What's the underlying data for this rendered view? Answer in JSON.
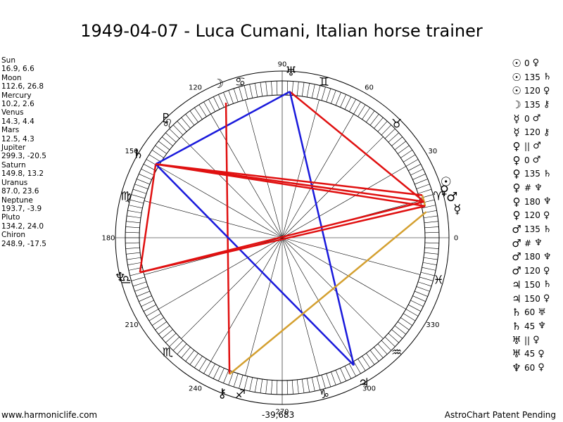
{
  "title": "1949-04-07 - Luca Cumani, Italian horse trainer",
  "planets": [
    {
      "name": "Sun",
      "glyph": "☉",
      "lon": 16.9,
      "lat": 6.6,
      "coords": "16.9, 6.6"
    },
    {
      "name": "Moon",
      "glyph": "☽",
      "lon": 112.6,
      "lat": 26.8,
      "coords": "112.6, 26.8"
    },
    {
      "name": "Mercury",
      "glyph": "☿",
      "lon": 10.2,
      "lat": 2.6,
      "coords": "10.2, 2.6"
    },
    {
      "name": "Venus",
      "glyph": "♀",
      "lon": 14.3,
      "lat": 4.4,
      "coords": "14.3, 4.4"
    },
    {
      "name": "Mars",
      "glyph": "♂",
      "lon": 12.5,
      "lat": 4.3,
      "coords": "12.5, 4.3"
    },
    {
      "name": "Jupiter",
      "glyph": "♃",
      "lon": 299.3,
      "lat": -20.5,
      "coords": "299.3, -20.5"
    },
    {
      "name": "Saturn",
      "glyph": "♄",
      "lon": 149.8,
      "lat": 13.2,
      "coords": "149.8, 13.2"
    },
    {
      "name": "Uranus",
      "glyph": "♅",
      "lon": 87.0,
      "lat": 23.6,
      "coords": "87.0, 23.6"
    },
    {
      "name": "Neptune",
      "glyph": "♆",
      "lon": 193.7,
      "lat": -3.9,
      "coords": "193.7, -3.9"
    },
    {
      "name": "Pluto",
      "glyph": "♇",
      "lon": 134.2,
      "lat": 24.0,
      "coords": "134.2, 24.0"
    },
    {
      "name": "Chiron",
      "glyph": "⚷",
      "lon": 248.9,
      "lat": -17.5,
      "coords": "248.9, -17.5"
    }
  ],
  "aspects": [
    {
      "p1": "☉",
      "angle": "0",
      "p2": "♀"
    },
    {
      "p1": "☉",
      "angle": "135",
      "p2": "♄"
    },
    {
      "p1": "☉",
      "angle": "120",
      "p2": "♀"
    },
    {
      "p1": "☽",
      "angle": "135",
      "p2": "⚷"
    },
    {
      "p1": "☿",
      "angle": "0",
      "p2": "♂"
    },
    {
      "p1": "☿",
      "angle": "120",
      "p2": "⚷"
    },
    {
      "p1": "♀",
      "angle": "||",
      "p2": "♂"
    },
    {
      "p1": "♀",
      "angle": "0",
      "p2": "♂"
    },
    {
      "p1": "♀",
      "angle": "135",
      "p2": "♄"
    },
    {
      "p1": "♀",
      "angle": "#",
      "p2": "♆"
    },
    {
      "p1": "♀",
      "angle": "180",
      "p2": "♆"
    },
    {
      "p1": "♀",
      "angle": "120",
      "p2": "♀"
    },
    {
      "p1": "♂",
      "angle": "135",
      "p2": "♄"
    },
    {
      "p1": "♂",
      "angle": "#",
      "p2": "♆"
    },
    {
      "p1": "♂",
      "angle": "180",
      "p2": "♆"
    },
    {
      "p1": "♂",
      "angle": "120",
      "p2": "♀"
    },
    {
      "p1": "♃",
      "angle": "150",
      "p2": "♄"
    },
    {
      "p1": "♃",
      "angle": "150",
      "p2": "♀"
    },
    {
      "p1": "♄",
      "angle": "60",
      "p2": "♅"
    },
    {
      "p1": "♄",
      "angle": "45",
      "p2": "♆"
    },
    {
      "p1": "♅",
      "angle": "||",
      "p2": "♀"
    },
    {
      "p1": "♅",
      "angle": "45",
      "p2": "♀"
    },
    {
      "p1": "♆",
      "angle": "60",
      "p2": "♀"
    }
  ],
  "degree_labels": [
    "0",
    "30",
    "60",
    "90",
    "120",
    "150",
    "180",
    "210",
    "240",
    "270",
    "300",
    "330"
  ],
  "zodiac": [
    "♈",
    "♉",
    "♊",
    "♋",
    "♌",
    "♍",
    "♎",
    "♏",
    "♐",
    "♑",
    "♒",
    "♓"
  ],
  "chart_lines": [
    {
      "from": "Uranus",
      "to": "Venus",
      "color": "#e01010"
    },
    {
      "from": "Uranus",
      "to": "Saturn",
      "color": "#1a1adc"
    },
    {
      "from": "Uranus",
      "to": "Jupiter",
      "color": "#1a1adc"
    },
    {
      "from": "Moon",
      "to": "Chiron",
      "color": "#e01010"
    },
    {
      "from": "Saturn",
      "to": "Neptune",
      "color": "#e01010"
    },
    {
      "from": "Saturn",
      "to": "Jupiter",
      "color": "#1a1adc"
    },
    {
      "from": "Venus",
      "to": "Mars",
      "color": "#d4a030"
    },
    {
      "from": "Venus",
      "to": "Sun",
      "color": "#d4a030"
    },
    {
      "from": "Chiron",
      "to": "Mercury",
      "color": "#d4a030"
    },
    {
      "from": "Saturn",
      "to": "Sun",
      "color": "#e01010"
    },
    {
      "from": "Saturn",
      "to": "Venus",
      "color": "#e01010"
    },
    {
      "from": "Saturn",
      "to": "Mars",
      "color": "#e01010"
    },
    {
      "from": "Neptune",
      "to": "Venus",
      "color": "#e01010"
    },
    {
      "from": "Neptune",
      "to": "Mars",
      "color": "#e01010"
    }
  ],
  "footer": {
    "left": "www.harmoniclife.com",
    "mid": "-39,683",
    "right": "AstroChart Patent Pending"
  }
}
